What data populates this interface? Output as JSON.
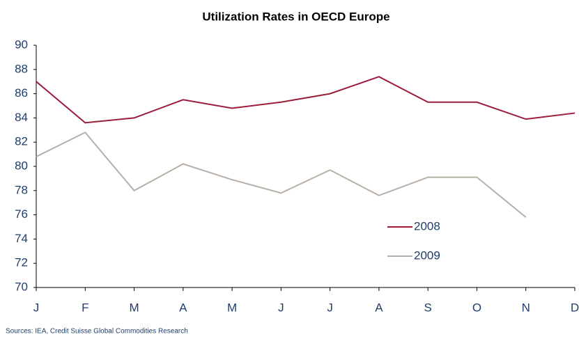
{
  "chart_data": {
    "type": "line",
    "title": "Utilization Rates in OECD Europe",
    "source": "Sources: IEA, Credit Suisse Global Commodities Research",
    "categories": [
      "J",
      "F",
      "M",
      "A",
      "M",
      "J",
      "J",
      "A",
      "S",
      "O",
      "N",
      "D"
    ],
    "series": [
      {
        "name": "2008",
        "color": "#9b1b3a",
        "values": [
          87.0,
          83.6,
          84.0,
          85.5,
          84.8,
          85.3,
          86.0,
          87.4,
          85.3,
          85.3,
          83.9,
          84.4
        ]
      },
      {
        "name": "2009",
        "color": "#b8b0a8",
        "values": [
          80.8,
          82.8,
          78.0,
          80.2,
          78.9,
          77.8,
          79.7,
          77.6,
          79.1,
          79.1,
          75.8,
          null
        ]
      }
    ],
    "ylim": [
      70,
      90
    ],
    "yticks": [
      70,
      72,
      74,
      76,
      78,
      80,
      82,
      84,
      86,
      88,
      90
    ],
    "grid": false
  }
}
